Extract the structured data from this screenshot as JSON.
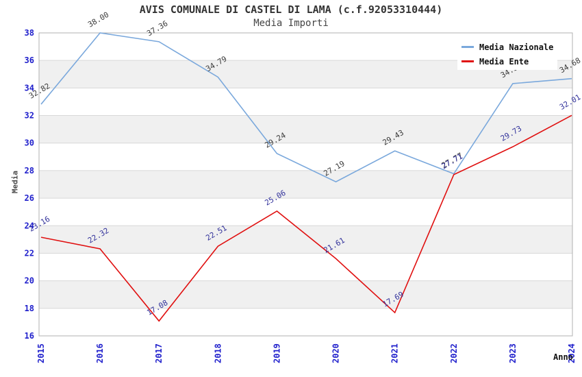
{
  "title": "AVIS COMUNALE DI CASTEL DI LAMA (c.f.92053310444)",
  "subtitle": "Media Importi",
  "axes": {
    "y_title": "Media",
    "x_title": "Anno",
    "tick_color": "#2020cc"
  },
  "legend": {
    "position": "top-right",
    "items": [
      {
        "label": "Media Nazionale",
        "color": "#7aa8dc"
      },
      {
        "label": "Media Ente",
        "color": "#e01010"
      }
    ]
  },
  "chart_data": {
    "type": "line",
    "title": "AVIS COMUNALE DI CASTEL DI LAMA (c.f.92053310444)",
    "subtitle": "Media Importi",
    "xlabel": "Anno",
    "ylabel": "Media",
    "x": [
      2015,
      2016,
      2017,
      2018,
      2019,
      2020,
      2021,
      2022,
      2023,
      2024
    ],
    "series": [
      {
        "name": "Media Nazionale",
        "color": "#7aa8dc",
        "label_color": "#3c3c3c",
        "values": [
          32.82,
          38.0,
          37.36,
          34.79,
          29.24,
          27.19,
          29.43,
          27.77,
          34.32,
          34.68
        ]
      },
      {
        "name": "Media Ente",
        "color": "#e01010",
        "label_color": "#32329b",
        "values": [
          23.16,
          22.32,
          17.08,
          22.51,
          25.06,
          21.61,
          17.69,
          27.71,
          29.73,
          32.01
        ]
      }
    ],
    "ylim": [
      16,
      38
    ],
    "ytick_step": 2,
    "grid": "horizontal gridlines with alternating gray bands",
    "band_color": "#f0f0f0",
    "grid_color": "#d8d8d8",
    "legend_position": "top-right",
    "data_labels": "shown, rotated 30deg"
  }
}
